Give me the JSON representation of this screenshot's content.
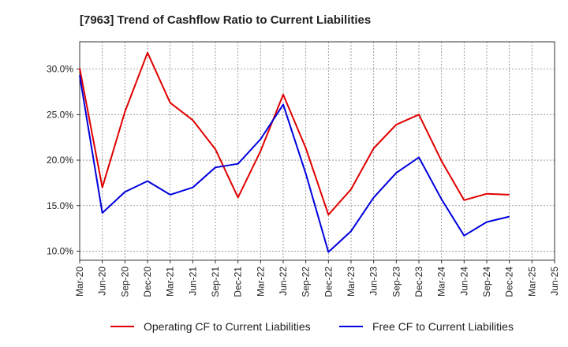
{
  "chart_data": {
    "type": "line",
    "title": "[7963]  Trend of Cashflow Ratio to Current Liabilities",
    "xlabel": "",
    "ylabel": "",
    "categories": [
      "Mar-20",
      "Jun-20",
      "Sep-20",
      "Dec-20",
      "Mar-21",
      "Jun-21",
      "Sep-21",
      "Dec-21",
      "Mar-22",
      "Jun-22",
      "Sep-22",
      "Dec-22",
      "Mar-23",
      "Jun-23",
      "Sep-23",
      "Dec-23",
      "Mar-24",
      "Jun-24",
      "Sep-24",
      "Dec-24",
      "Mar-25",
      "Jun-25"
    ],
    "y_ticks": [
      "10.0%",
      "15.0%",
      "20.0%",
      "25.0%",
      "30.0%"
    ],
    "y_tick_values": [
      10,
      15,
      20,
      25,
      30
    ],
    "ylim": [
      9.0,
      33.0
    ],
    "grid": "dotted",
    "legend_position": "bottom",
    "series": [
      {
        "name": "Operating CF to Current Liabilities",
        "color": "#e00000",
        "values": [
          30.1,
          17.0,
          25.3,
          31.8,
          26.3,
          24.4,
          21.2,
          15.9,
          21.0,
          27.2,
          21.3,
          14.0,
          16.8,
          21.3,
          23.9,
          25.0,
          19.9,
          15.6,
          16.3,
          16.2,
          null,
          null
        ]
      },
      {
        "name": "Free CF to Current Liabilities",
        "color": "#0000dd",
        "values": [
          29.3,
          14.2,
          16.5,
          17.7,
          16.2,
          17.0,
          19.2,
          19.6,
          22.3,
          26.1,
          18.5,
          9.9,
          12.2,
          15.9,
          18.6,
          20.3,
          15.7,
          11.7,
          13.2,
          13.8,
          null,
          null
        ]
      }
    ]
  }
}
